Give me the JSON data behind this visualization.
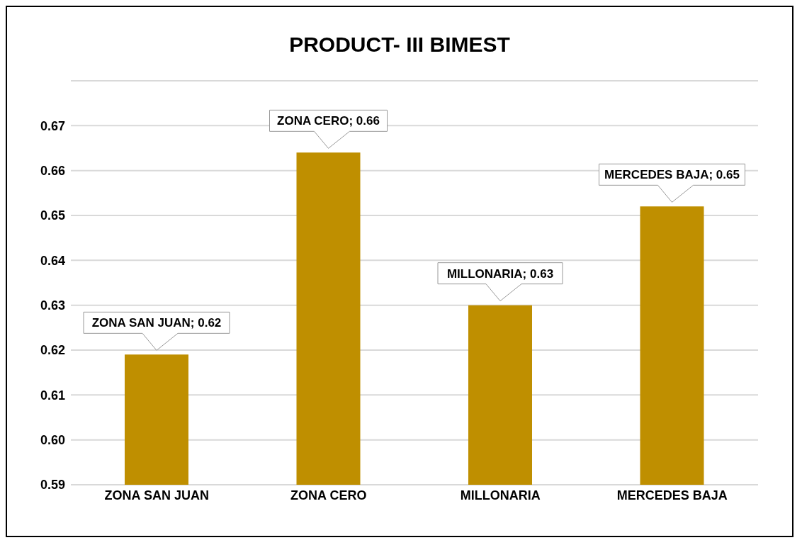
{
  "chart_data": {
    "type": "bar",
    "title": "PRODUCT- III BIMEST",
    "categories": [
      "ZONA SAN JUAN",
      "ZONA CERO",
      "MILLONARIA",
      "MERCEDES BAJA"
    ],
    "values": [
      0.619,
      0.664,
      0.63,
      0.652
    ],
    "value_labels": [
      "ZONA SAN JUAN; 0.62",
      "ZONA CERO; 0.66",
      "MILLONARIA; 0.63",
      "MERCEDES BAJA; 0.65"
    ],
    "color": "#bf8f00",
    "ylim": [
      0.59,
      0.68
    ],
    "yticks": [
      0.59,
      {
        "value": 0.6,
        "label": "0.60"
      },
      0.61,
      0.62,
      0.63,
      0.64,
      0.65,
      0.66,
      0.67,
      {
        "value": 0.68,
        "label": null
      }
    ],
    "grid": "y",
    "legend": false
  }
}
